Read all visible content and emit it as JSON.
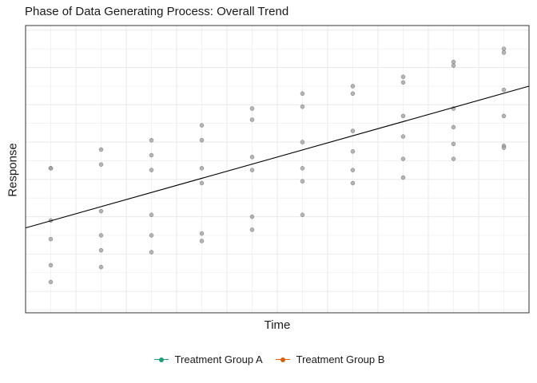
{
  "chart_data": {
    "type": "scatter",
    "title": "Phase of Data Generating Process: Overall Trend",
    "xlabel": "Time",
    "ylabel": "Response",
    "x_ticks_shown": false,
    "y_ticks_shown": false,
    "xlim": [
      0.5,
      10.5
    ],
    "ylim": [
      -3.15,
      12.25
    ],
    "grid": true,
    "legend_position": "bottom",
    "points": [
      {
        "x": 1,
        "y": 4.6
      },
      {
        "x": 1,
        "y": 4.6
      },
      {
        "x": 1,
        "y": 1.8
      },
      {
        "x": 1,
        "y": 0.8
      },
      {
        "x": 1,
        "y": -0.6
      },
      {
        "x": 1,
        "y": -1.5
      },
      {
        "x": 2,
        "y": 5.6
      },
      {
        "x": 2,
        "y": 4.8
      },
      {
        "x": 2,
        "y": 2.3
      },
      {
        "x": 2,
        "y": 1.0
      },
      {
        "x": 2,
        "y": 0.2
      },
      {
        "x": 2,
        "y": -0.7
      },
      {
        "x": 3,
        "y": 6.1
      },
      {
        "x": 3,
        "y": 5.3
      },
      {
        "x": 3,
        "y": 4.5
      },
      {
        "x": 3,
        "y": 2.1
      },
      {
        "x": 3,
        "y": 1.0
      },
      {
        "x": 3,
        "y": 0.1
      },
      {
        "x": 4,
        "y": 6.9
      },
      {
        "x": 4,
        "y": 6.1
      },
      {
        "x": 4,
        "y": 4.6
      },
      {
        "x": 4,
        "y": 3.8
      },
      {
        "x": 4,
        "y": 1.1
      },
      {
        "x": 4,
        "y": 0.7
      },
      {
        "x": 5,
        "y": 7.8
      },
      {
        "x": 5,
        "y": 7.2
      },
      {
        "x": 5,
        "y": 5.2
      },
      {
        "x": 5,
        "y": 4.5
      },
      {
        "x": 5,
        "y": 2.0
      },
      {
        "x": 5,
        "y": 1.3
      },
      {
        "x": 6,
        "y": 8.6
      },
      {
        "x": 6,
        "y": 7.9
      },
      {
        "x": 6,
        "y": 6.0
      },
      {
        "x": 6,
        "y": 4.6
      },
      {
        "x": 6,
        "y": 3.9
      },
      {
        "x": 6,
        "y": 2.1
      },
      {
        "x": 7,
        "y": 9.0
      },
      {
        "x": 7,
        "y": 8.6
      },
      {
        "x": 7,
        "y": 6.6
      },
      {
        "x": 7,
        "y": 5.5
      },
      {
        "x": 7,
        "y": 4.5
      },
      {
        "x": 7,
        "y": 3.8
      },
      {
        "x": 8,
        "y": 9.5
      },
      {
        "x": 8,
        "y": 9.2
      },
      {
        "x": 8,
        "y": 7.4
      },
      {
        "x": 8,
        "y": 6.3
      },
      {
        "x": 8,
        "y": 5.1
      },
      {
        "x": 8,
        "y": 4.1
      },
      {
        "x": 9,
        "y": 10.3
      },
      {
        "x": 9,
        "y": 10.1
      },
      {
        "x": 9,
        "y": 7.8
      },
      {
        "x": 9,
        "y": 6.8
      },
      {
        "x": 9,
        "y": 5.9
      },
      {
        "x": 9,
        "y": 5.1
      },
      {
        "x": 10,
        "y": 11.0
      },
      {
        "x": 10,
        "y": 10.8
      },
      {
        "x": 10,
        "y": 8.8
      },
      {
        "x": 10,
        "y": 7.4
      },
      {
        "x": 10,
        "y": 5.8
      },
      {
        "x": 10,
        "y": 5.7
      }
    ],
    "trend_line": {
      "x": [
        0.5,
        10.5
      ],
      "y": [
        1.4,
        9.0
      ]
    },
    "point_color": "#9e9e9e",
    "line_color": "#000000",
    "legend": [
      {
        "label": "Treatment Group A",
        "color": "#1b9e77"
      },
      {
        "label": "Treatment Group B",
        "color": "#d95f02"
      }
    ]
  }
}
